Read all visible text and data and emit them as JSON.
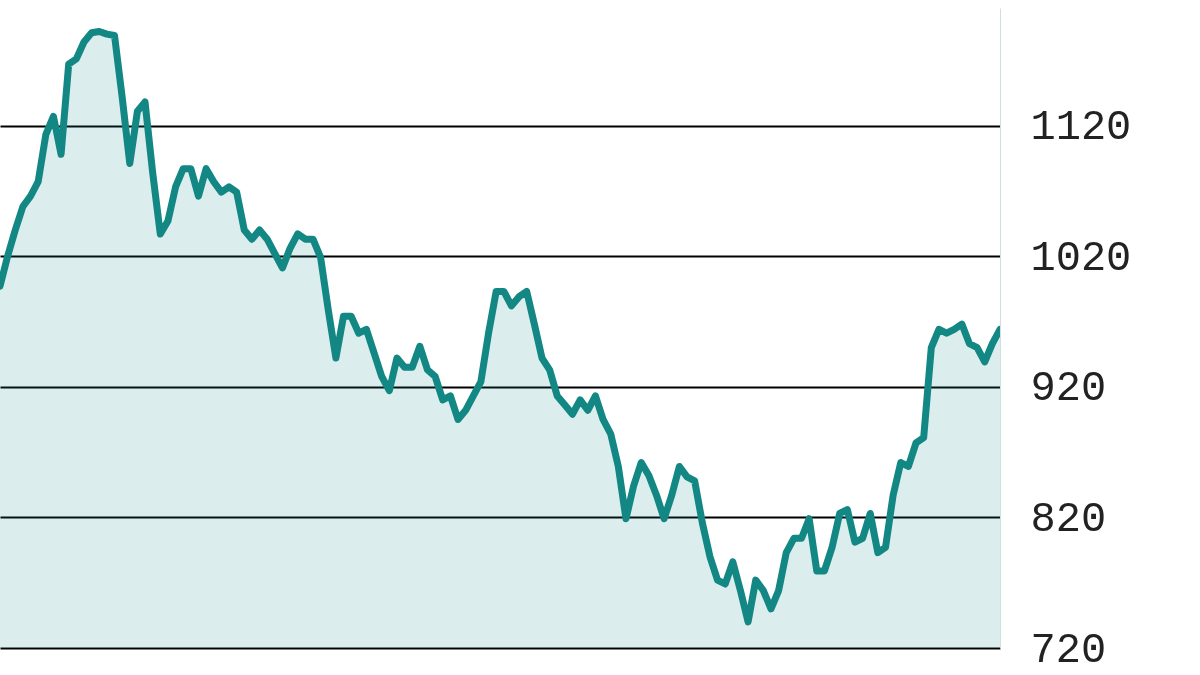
{
  "chart_data": {
    "type": "area",
    "color": "#128784",
    "grid": "y",
    "tick_labels": "y",
    "ylim": [
      720,
      1210
    ],
    "yticks": [
      720,
      820,
      920,
      1020,
      1120
    ],
    "categories": [
      null,
      null,
      null,
      null,
      null,
      null,
      null,
      null,
      null,
      null,
      null,
      null,
      null,
      null,
      null,
      null,
      null,
      null,
      null,
      null,
      null,
      null,
      null,
      null,
      null,
      null,
      null,
      null,
      null,
      null,
      null,
      null,
      null,
      null,
      null,
      null,
      null,
      null,
      null,
      null,
      null,
      null,
      null,
      null,
      null,
      null,
      null,
      null,
      null,
      null,
      null,
      null,
      null,
      null,
      null,
      null,
      null,
      null,
      null,
      null,
      null,
      null,
      null,
      null,
      null,
      null,
      null,
      null,
      null,
      null,
      null,
      null,
      null,
      null,
      null,
      null,
      null,
      null,
      null,
      null,
      null,
      null,
      null,
      null,
      null,
      null,
      null,
      null,
      null,
      null,
      null,
      null,
      null,
      null,
      null,
      null,
      null,
      null,
      null,
      null,
      null,
      null,
      null,
      null,
      null,
      null,
      null,
      null,
      null,
      null,
      null,
      null,
      null,
      null,
      null,
      null,
      null,
      null,
      null,
      null,
      null,
      null,
      null,
      null,
      null,
      null,
      null,
      null,
      null,
      null,
      null,
      null
    ],
    "values": [
      997,
      1020,
      1040,
      1058,
      1066,
      1077,
      1113,
      1127,
      1098,
      1167,
      1171,
      1184,
      1191,
      1192,
      1190,
      1189,
      1142,
      1091,
      1131,
      1138,
      1084,
      1037,
      1047,
      1073,
      1087,
      1087,
      1066,
      1087,
      1077,
      1069,
      1073,
      1069,
      1040,
      1033,
      1040,
      1033,
      1022,
      1011,
      1026,
      1037,
      1033,
      1033,
      1019,
      979,
      942,
      974,
      974,
      961,
      964,
      946,
      928,
      917,
      942,
      935,
      935,
      951,
      933,
      928,
      910,
      913,
      895,
      902,
      913,
      924,
      961,
      993,
      993,
      982,
      989,
      993,
      968,
      942,
      933,
      913,
      906,
      899,
      910,
      902,
      913,
      895,
      884,
      859,
      819,
      844,
      862,
      852,
      837,
      819,
      837,
      859,
      851,
      848,
      816,
      790,
      772,
      769,
      786,
      764,
      740,
      772,
      764,
      750,
      764,
      793,
      804,
      804,
      819,
      779,
      779,
      797,
      823,
      826,
      801,
      804,
      823,
      793,
      797,
      837,
      862,
      859,
      877,
      881,
      950,
      964,
      961,
      964,
      968,
      953,
      950,
      939,
      953,
      964
    ]
  }
}
